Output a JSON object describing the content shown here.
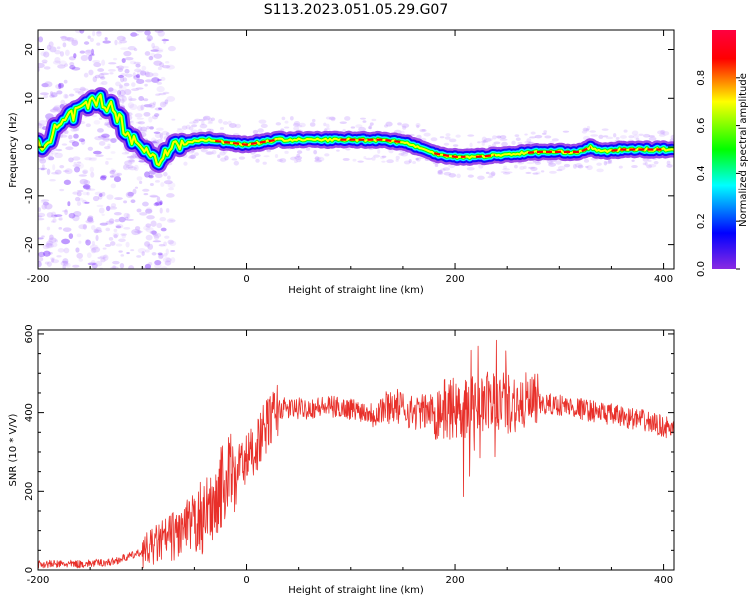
{
  "figure": {
    "title": "S113.2023.051.05.29.G07"
  },
  "chart_data": [
    {
      "type": "heatmap",
      "xlabel": "Height of straight line (km)",
      "ylabel": "Frequency (Hz)",
      "xlim": [
        -200,
        410
      ],
      "ylim": [
        -25,
        24
      ],
      "xticks": [
        -200,
        0,
        200,
        400
      ],
      "yticks": [
        -20,
        -10,
        0,
        10,
        20
      ],
      "grid": false,
      "colorbar": {
        "label": "Normalized spectral amplitude",
        "range": [
          0,
          1
        ],
        "ticks": [
          "0.0",
          "0.2",
          "0.4",
          "0.6",
          "0.8"
        ],
        "colors": [
          "#8a2be2",
          "#0000ff",
          "#00ffff",
          "#00ff00",
          "#ffff00",
          "#ff0000",
          "#ff0040"
        ]
      },
      "ridge": {
        "x": [
          -200,
          -185,
          -170,
          -155,
          -140,
          -125,
          -115,
          -105,
          -95,
          -85,
          -75,
          -65,
          -55,
          -40,
          -20,
          0,
          30,
          60,
          100,
          130,
          150,
          165,
          175,
          185,
          200,
          220,
          250,
          280,
          300,
          320,
          330,
          340,
          360,
          380,
          410
        ],
        "y": [
          0,
          3,
          6,
          8,
          10,
          7,
          3,
          1,
          -1,
          -3,
          0,
          0,
          1,
          1.5,
          1,
          0.5,
          1.5,
          1.5,
          1.5,
          1.5,
          1,
          0,
          -1,
          -1.5,
          -2,
          -2,
          -1.5,
          -1,
          -1,
          -1,
          0,
          -1,
          -0.5,
          -0.5,
          -0.5
        ]
      }
    },
    {
      "type": "line",
      "xlabel": "Height of straight line (km)",
      "ylabel": "SNR (10 * V/V)",
      "xlim": [
        -200,
        410
      ],
      "ylim": [
        0,
        610
      ],
      "xticks": [
        -200,
        0,
        200,
        400
      ],
      "yticks": [
        0,
        200,
        400,
        600
      ],
      "grid": false,
      "series": [
        {
          "color": "#e8302a",
          "x": [
            -200,
            -160,
            -130,
            -100,
            -80,
            -60,
            -50,
            -40,
            -30,
            -20,
            -10,
            0,
            10,
            20,
            30,
            50,
            80,
            100,
            120,
            130,
            140,
            160,
            180,
            200,
            220,
            240,
            260,
            280,
            300,
            320,
            340,
            360,
            380,
            400,
            410
          ],
          "y": [
            15,
            15,
            20,
            45,
            75,
            100,
            115,
            130,
            180,
            230,
            260,
            280,
            320,
            370,
            410,
            410,
            415,
            410,
            400,
            410,
            420,
            400,
            405,
            410,
            420,
            430,
            425,
            420,
            420,
            410,
            400,
            390,
            380,
            365,
            355
          ]
        }
      ]
    }
  ]
}
